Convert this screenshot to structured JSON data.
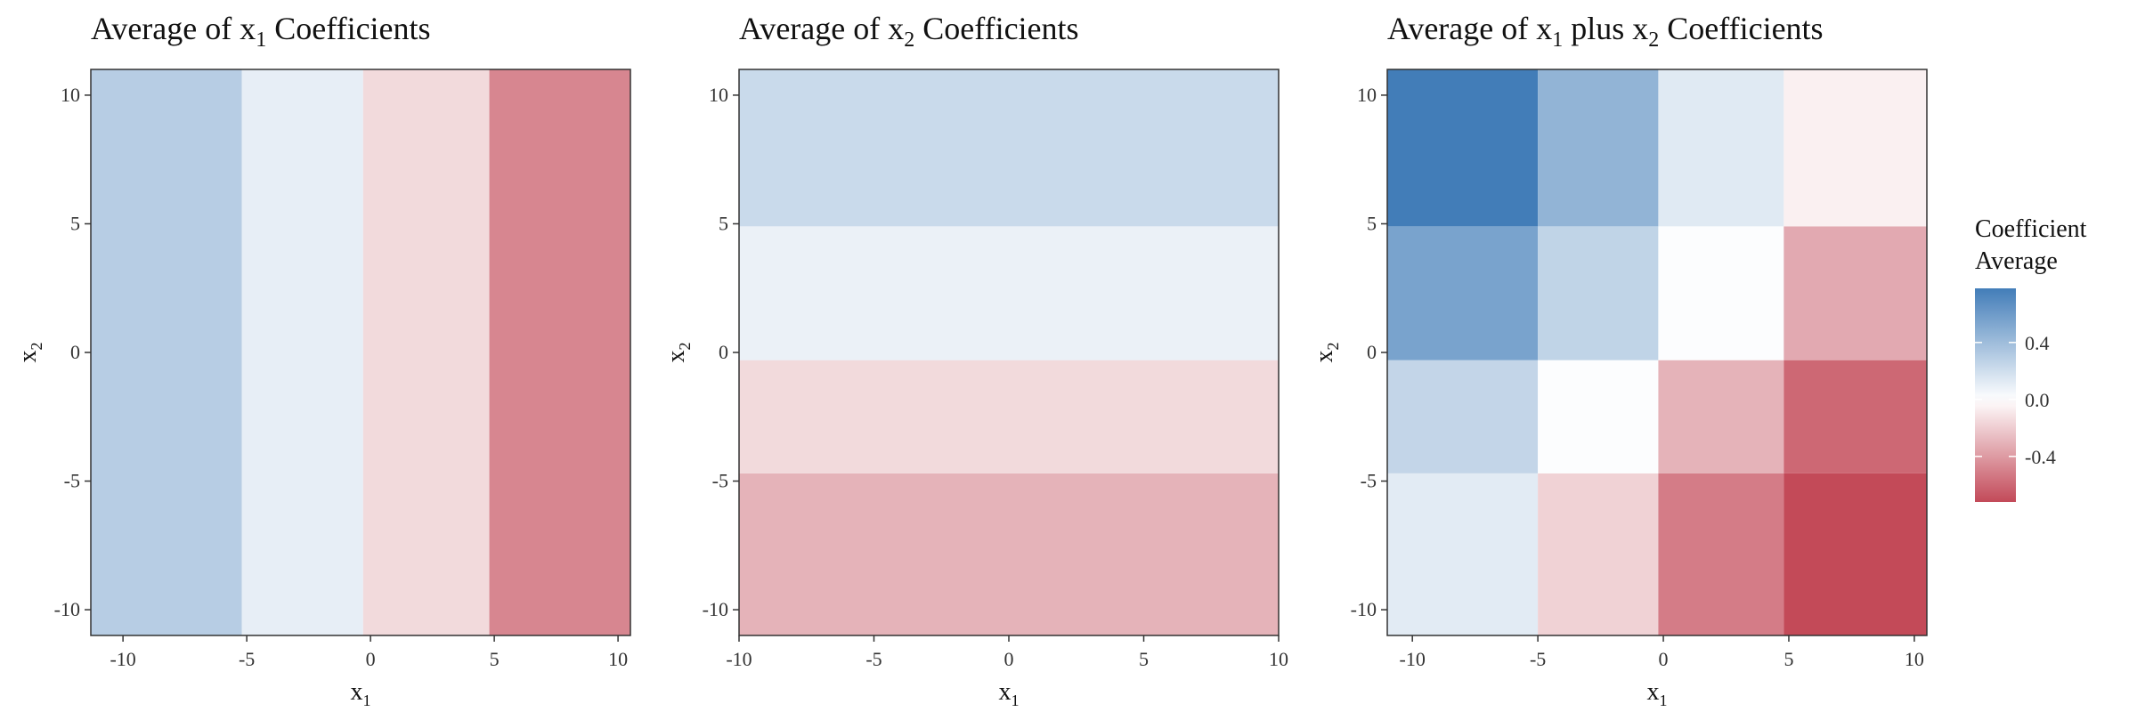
{
  "chart_data": [
    {
      "type": "heatmap",
      "title_main": "Average of x",
      "title_sub": "1",
      "title_rest": " Coefficients",
      "xlabel_main": "x",
      "xlabel_sub": "1",
      "ylabel_main": "x",
      "ylabel_sub": "2",
      "x_breaks": [
        -10,
        -5,
        0,
        5,
        10
      ],
      "y_breaks": [
        -10,
        -5,
        0,
        5,
        10
      ],
      "x_tick_labels": [
        "-10",
        "-5",
        "0",
        "5",
        "10"
      ],
      "y_tick_labels": [
        "-10",
        "-5",
        "0",
        "5",
        "10"
      ],
      "xlim": [
        -11.3,
        10.5
      ],
      "ylim": [
        -11.0,
        11.0
      ],
      "x_edges": [
        -11.3,
        -5.2,
        -0.3,
        4.8,
        10.5
      ],
      "y_edges": [
        -11.0,
        11.0
      ],
      "values": [
        [
          0.3,
          0.1,
          -0.15,
          -0.48
        ]
      ]
    },
    {
      "type": "heatmap",
      "title_main": "Average of x",
      "title_sub": "2",
      "title_rest": " Coefficients",
      "xlabel_main": "x",
      "xlabel_sub": "1",
      "ylabel_main": "x",
      "ylabel_sub": "2",
      "x_breaks": [
        -10,
        -5,
        0,
        5,
        10
      ],
      "y_breaks": [
        -10,
        -5,
        0,
        5,
        10
      ],
      "x_tick_labels": [
        "-10",
        "-5",
        "0",
        "5",
        "10"
      ],
      "y_tick_labels": [
        "-10",
        "-5",
        "0",
        "5",
        "10"
      ],
      "xlim": [
        -10.0,
        10.0
      ],
      "ylim": [
        -11.0,
        11.0
      ],
      "x_edges": [
        -10.0,
        10.0
      ],
      "y_edges": [
        -11.0,
        -4.7,
        -0.3,
        4.9,
        11.0
      ],
      "values": [
        [
          -0.3
        ],
        [
          -0.15
        ],
        [
          0.08
        ],
        [
          0.22
        ]
      ]
    },
    {
      "type": "heatmap",
      "title_main": "Average of x",
      "title_sub": "1",
      "title_mid": " plus x",
      "title_sub2": "2",
      "title_rest": " Coefficients",
      "xlabel_main": "x",
      "xlabel_sub": "1",
      "ylabel_main": "x",
      "ylabel_sub": "2",
      "x_breaks": [
        -10,
        -5,
        0,
        5,
        10
      ],
      "y_breaks": [
        -10,
        -5,
        0,
        5,
        10
      ],
      "x_tick_labels": [
        "-10",
        "-5",
        "0",
        "5",
        "10"
      ],
      "y_tick_labels": [
        "-10",
        "-5",
        "0",
        "5",
        "10"
      ],
      "xlim": [
        -11.0,
        10.5
      ],
      "ylim": [
        -11.0,
        11.0
      ],
      "x_edges": [
        -11.0,
        -5.0,
        -0.2,
        4.8,
        10.5
      ],
      "y_edges": [
        -11.0,
        -4.7,
        -0.3,
        4.9,
        11.0
      ],
      "values": [
        [
          0.12,
          -0.18,
          -0.52,
          -0.72
        ],
        [
          0.25,
          0.01,
          -0.3,
          -0.6
        ],
        [
          0.55,
          0.26,
          0.01,
          -0.34
        ],
        [
          0.78,
          0.45,
          0.13,
          -0.06
        ]
      ]
    }
  ],
  "legend": {
    "title_line1": "Coefficient",
    "title_line2": "Average",
    "min": -0.72,
    "max": 0.78,
    "breaks": [
      0.4,
      0.0,
      -0.4
    ],
    "labels": [
      "0.4",
      "0.0",
      "-0.4"
    ]
  },
  "colors": {
    "low": "#B2182B",
    "mid": "#FFFFFF",
    "high": "#2166AC",
    "tile_opacity": 0.85,
    "frame": "#333333"
  }
}
